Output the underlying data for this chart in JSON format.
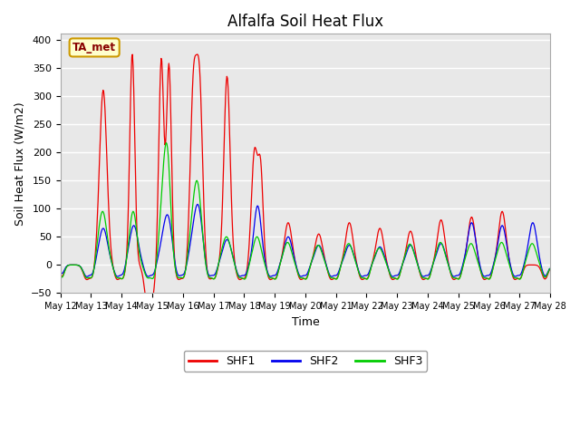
{
  "title": "Alfalfa Soil Heat Flux",
  "ylabel": "Soil Heat Flux (W/m2)",
  "xlabel": "Time",
  "ylim": [
    -50,
    410
  ],
  "yticks": [
    -50,
    0,
    50,
    100,
    150,
    200,
    250,
    300,
    350,
    400
  ],
  "annotation_text": "TA_met",
  "annotation_bg": "#ffffcc",
  "annotation_border": "#cc9900",
  "colors": {
    "SHF1": "#ee0000",
    "SHF2": "#0000ee",
    "SHF3": "#00cc00"
  },
  "fig_bg": "#ffffff",
  "plot_bg": "#e8e8e8",
  "grid_color": "#ffffff",
  "title_fontsize": 12,
  "tick_fontsize": 8,
  "label_fontsize": 9,
  "n_days": 16,
  "x_start_label": "May 12",
  "x_end_label": "May 27"
}
